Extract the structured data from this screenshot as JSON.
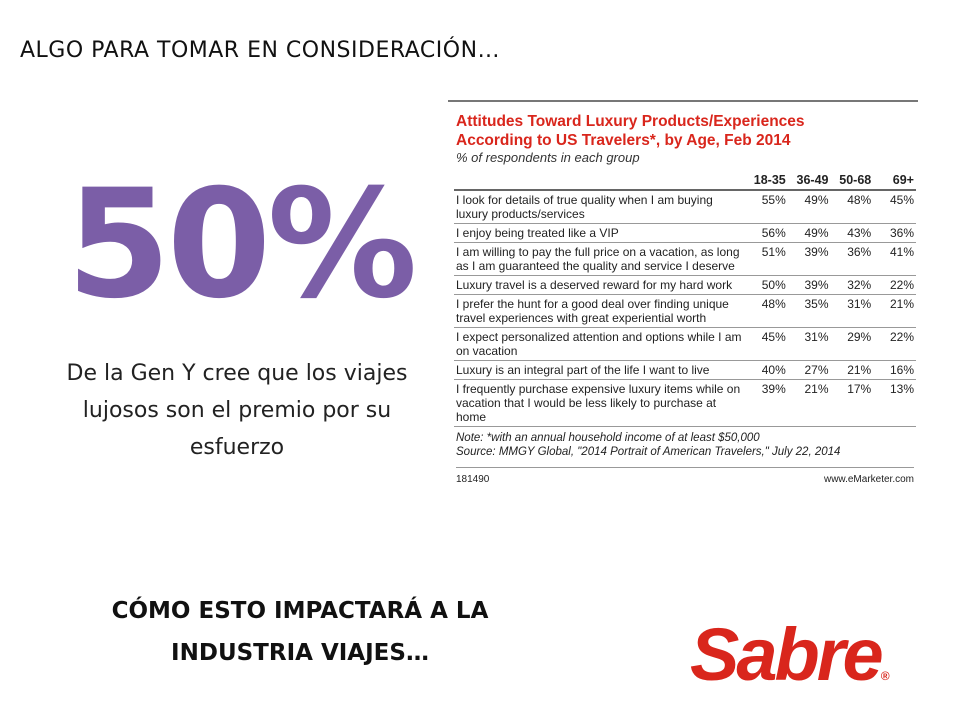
{
  "header": {
    "title": "ALGO PARA TOMAR EN CONSIDERACIÓN…"
  },
  "highlight": {
    "stat": "50%",
    "text": "De la Gen Y cree que los viajes lujosos son el premio por su esfuerzo"
  },
  "table": {
    "title_lines": [
      "Attitudes Toward Luxury Products/Experiences",
      "According to US Travelers*, by Age, Feb 2014"
    ],
    "subtitle": "% of respondents in each group",
    "columns": [
      "18-35",
      "36-49",
      "50-68",
      "69+"
    ],
    "rows": [
      [
        "I look for details of true quality when I am buying luxury products/services",
        "55%",
        "49%",
        "48%",
        "45%"
      ],
      [
        "I enjoy being treated like a VIP",
        "56%",
        "49%",
        "43%",
        "36%"
      ],
      [
        "I am willing to pay the full price on a vacation, as long as I am guaranteed the quality and service I deserve",
        "51%",
        "39%",
        "36%",
        "41%"
      ],
      [
        "Luxury travel is a deserved reward for my hard work",
        "50%",
        "39%",
        "32%",
        "22%"
      ],
      [
        "I prefer the hunt for a good deal over finding unique travel experiences with great experiential worth",
        "48%",
        "35%",
        "31%",
        "21%"
      ],
      [
        "I expect personalized attention and options while I am on vacation",
        "45%",
        "31%",
        "29%",
        "22%"
      ],
      [
        "Luxury is an integral part of the life I want to live",
        "40%",
        "27%",
        "21%",
        "16%"
      ],
      [
        "I frequently purchase expensive luxury items while on vacation that I would be less likely to purchase at home",
        "39%",
        "21%",
        "17%",
        "13%"
      ]
    ],
    "note": "Note: *with an annual household income of at least $50,000",
    "source": "Source: MMGY Global, \"2014 Portrait of American Travelers,\" July 22, 2014",
    "id": "181490",
    "brand": "www.eMarketer.com"
  },
  "question": "CÓMO ESTO IMPACTARÁ A LA INDUSTRIA VIAJES…",
  "logo": {
    "text": "Sabre",
    "mark": "®"
  }
}
